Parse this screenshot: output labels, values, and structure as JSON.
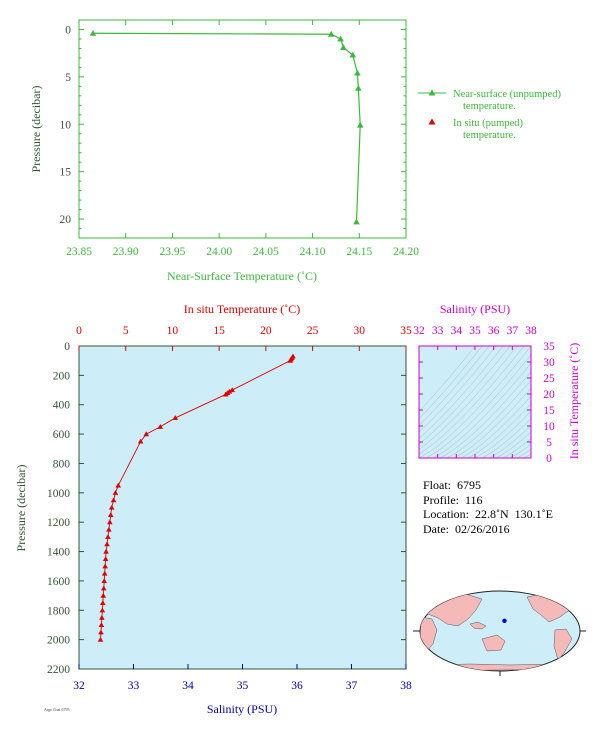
{
  "colors": {
    "green": "#3cb83c",
    "red": "#e00000",
    "blue": "#0000aa",
    "magenta": "#cc00cc",
    "axis_dark": "#335533",
    "plot_bg": "#cdeef8"
  },
  "top_chart": {
    "type": "line",
    "xlabel": "Near-Surface Temperature (˚C)",
    "ylabel": "Pressure (decibar)",
    "xlim": [
      23.85,
      24.2
    ],
    "ylim": [
      22,
      -1
    ],
    "x_ticks": [
      "23.85",
      "23.90",
      "23.95",
      "24.00",
      "24.05",
      "24.10",
      "24.15",
      "24.20"
    ],
    "y_ticks": [
      "0",
      "5",
      "10",
      "15",
      "20"
    ],
    "legend": [
      {
        "label_line1": "Near-surface (unpumped)",
        "label_line2": "temperature."
      },
      {
        "label_line1": "In situ (pumped)",
        "label_line2": "temperature."
      }
    ]
  },
  "main_chart": {
    "type": "line",
    "top_axis_label": "In situ Temperature (˚C)",
    "bottom_axis_label": "Salinity (PSU)",
    "ylabel": "Pressure (decibar)",
    "temp_ticks": [
      "0",
      "5",
      "10",
      "15",
      "20",
      "25",
      "30",
      "35"
    ],
    "sal_ticks": [
      "32",
      "33",
      "34",
      "35",
      "36",
      "37",
      "38"
    ],
    "p_ticks": [
      "0",
      "200",
      "400",
      "600",
      "800",
      "1000",
      "1200",
      "1400",
      "1600",
      "1800",
      "2000",
      "2200"
    ]
  },
  "ts_chart": {
    "title": "Salinity (PSU)",
    "ylabel": "In situ Temperature (˚C)",
    "sal_ticks": [
      "32",
      "33",
      "34",
      "35",
      "36",
      "37",
      "38"
    ],
    "temp_ticks": [
      "0",
      "5",
      "10",
      "15",
      "20",
      "25",
      "30",
      "35"
    ]
  },
  "chart_data": [
    {
      "type": "line",
      "name": "near-surface",
      "xlabel": "Near-Surface Temperature (˚C)",
      "ylabel": "Pressure (decibar)",
      "xlim": [
        23.85,
        24.2
      ],
      "ylim": [
        22,
        -1
      ],
      "series": [
        {
          "name": "Near-surface (unpumped) temperature.",
          "points": [
            [
              23.865,
              0.4
            ],
            [
              24.12,
              0.5
            ],
            [
              24.13,
              1.0
            ],
            [
              24.133,
              1.9
            ],
            [
              24.143,
              2.7
            ],
            [
              24.148,
              4.6
            ],
            [
              24.149,
              6.2
            ],
            [
              24.151,
              10.1
            ],
            [
              24.147,
              20.3
            ]
          ]
        }
      ]
    },
    {
      "type": "line",
      "name": "profile",
      "top_axis": "In situ Temperature (˚C)",
      "bottom_axis": "Salinity (PSU)",
      "ylabel": "Pressure (decibar)",
      "xlim_temperature": [
        0,
        35
      ],
      "xlim_salinity": [
        32,
        38
      ],
      "ylim": [
        2200,
        0
      ],
      "series": [
        {
          "name": "In situ temperature",
          "points": [
            [
              22.9,
              70
            ],
            [
              22.8,
              80
            ],
            [
              22.7,
              90
            ],
            [
              22.6,
              100
            ],
            [
              16.4,
              300
            ],
            [
              16.1,
              310
            ],
            [
              15.9,
              320
            ],
            [
              15.7,
              330
            ],
            [
              10.3,
              490
            ],
            [
              8.7,
              550
            ],
            [
              7.2,
              600
            ],
            [
              6.6,
              650
            ],
            [
              4.2,
              950
            ],
            [
              3.9,
              1000
            ],
            [
              3.7,
              1050
            ],
            [
              3.5,
              1100
            ],
            [
              3.4,
              1150
            ],
            [
              3.3,
              1200
            ],
            [
              3.2,
              1250
            ],
            [
              3.1,
              1300
            ],
            [
              3.0,
              1350
            ],
            [
              2.9,
              1400
            ],
            [
              2.85,
              1450
            ],
            [
              2.8,
              1500
            ],
            [
              2.75,
              1550
            ],
            [
              2.7,
              1600
            ],
            [
              2.65,
              1650
            ],
            [
              2.6,
              1700
            ],
            [
              2.55,
              1750
            ],
            [
              2.5,
              1800
            ],
            [
              2.45,
              1850
            ],
            [
              2.4,
              1900
            ],
            [
              2.35,
              1950
            ],
            [
              2.3,
              2000
            ]
          ]
        }
      ]
    }
  ],
  "info": {
    "float": "Float:  6795",
    "profile": "Profile:  116",
    "location": "Location:  22.8˚N  130.1˚E",
    "date": "Date:  02/26/2016"
  },
  "map": {
    "marker_lat": 22.8,
    "marker_lon": 130.1
  },
  "stamp": "Argo float 6795"
}
